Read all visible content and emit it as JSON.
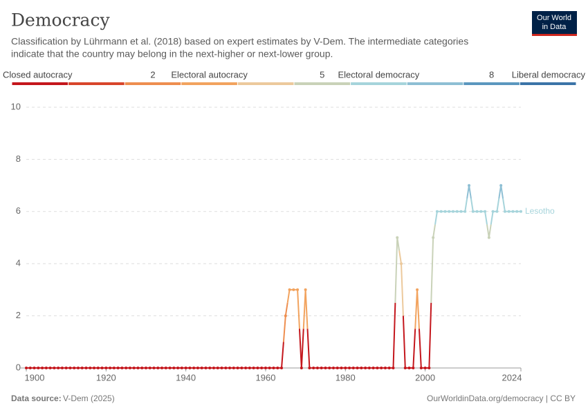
{
  "chart_data": {
    "type": "line",
    "title": "Democracy",
    "subtitle": [
      "Classification by Lührmann et al. (2018) based on expert estimates by V-Dem. The intermediate categories",
      "indicate that the country may belong in the next-higher or next-lower group."
    ],
    "logo": [
      "Our World",
      "in Data"
    ],
    "source_label": "Data source:",
    "source": "V-Dem (2025)",
    "url": "OurWorldinData.org/democracy | CC BY",
    "legend": {
      "labels": [
        "Closed autocracy",
        "2",
        "Electoral autocracy",
        "5",
        "Electoral democracy",
        "8",
        "Liberal democracy"
      ],
      "colors": [
        "#c4161c",
        "#d8452b",
        "#ee8e4f",
        "#f2a35e",
        "#ecc99c",
        "#c9d2b8",
        "#a6d4db",
        "#8ebfd4",
        "#5b97bf",
        "#3b74a8"
      ]
    },
    "xlim": [
      1900,
      2024
    ],
    "xticks": [
      1900,
      1920,
      1940,
      1960,
      1980,
      2000,
      2024
    ],
    "ylim": [
      0,
      10
    ],
    "yticks": [
      0,
      2,
      4,
      6,
      8,
      10
    ],
    "grid": true,
    "x": [
      1900,
      1901,
      1902,
      1903,
      1904,
      1905,
      1906,
      1907,
      1908,
      1909,
      1910,
      1911,
      1912,
      1913,
      1914,
      1915,
      1916,
      1917,
      1918,
      1919,
      1920,
      1921,
      1922,
      1923,
      1924,
      1925,
      1926,
      1927,
      1928,
      1929,
      1930,
      1931,
      1932,
      1933,
      1934,
      1935,
      1936,
      1937,
      1938,
      1939,
      1940,
      1941,
      1942,
      1943,
      1944,
      1945,
      1946,
      1947,
      1948,
      1949,
      1950,
      1951,
      1952,
      1953,
      1954,
      1955,
      1956,
      1957,
      1958,
      1959,
      1960,
      1961,
      1962,
      1963,
      1964,
      1965,
      1966,
      1967,
      1968,
      1969,
      1970,
      1971,
      1972,
      1973,
      1974,
      1975,
      1976,
      1977,
      1978,
      1979,
      1980,
      1981,
      1982,
      1983,
      1984,
      1985,
      1986,
      1987,
      1988,
      1989,
      1990,
      1991,
      1992,
      1993,
      1994,
      1995,
      1996,
      1997,
      1998,
      1999,
      2000,
      2001,
      2002,
      2003,
      2004,
      2005,
      2006,
      2007,
      2008,
      2009,
      2010,
      2011,
      2012,
      2013,
      2014,
      2015,
      2016,
      2017,
      2018,
      2019,
      2020,
      2021,
      2022,
      2023,
      2024
    ],
    "series": [
      {
        "name": "Lesotho",
        "values": [
          0,
          0,
          0,
          0,
          0,
          0,
          0,
          0,
          0,
          0,
          0,
          0,
          0,
          0,
          0,
          0,
          0,
          0,
          0,
          0,
          0,
          0,
          0,
          0,
          0,
          0,
          0,
          0,
          0,
          0,
          0,
          0,
          0,
          0,
          0,
          0,
          0,
          0,
          0,
          0,
          0,
          0,
          0,
          0,
          0,
          0,
          0,
          0,
          0,
          0,
          0,
          0,
          0,
          0,
          0,
          0,
          0,
          0,
          0,
          0,
          0,
          0,
          0,
          0,
          0,
          2,
          3,
          3,
          3,
          0,
          3,
          0,
          0,
          0,
          0,
          0,
          0,
          0,
          0,
          0,
          0,
          0,
          0,
          0,
          0,
          0,
          0,
          0,
          0,
          0,
          0,
          0,
          0,
          5,
          4,
          0,
          0,
          0,
          3,
          0,
          0,
          0,
          5,
          6,
          6,
          6,
          6,
          6,
          6,
          6,
          6,
          7,
          6,
          6,
          6,
          6,
          5,
          6,
          6,
          7,
          6,
          6,
          6,
          6,
          6
        ]
      }
    ]
  }
}
